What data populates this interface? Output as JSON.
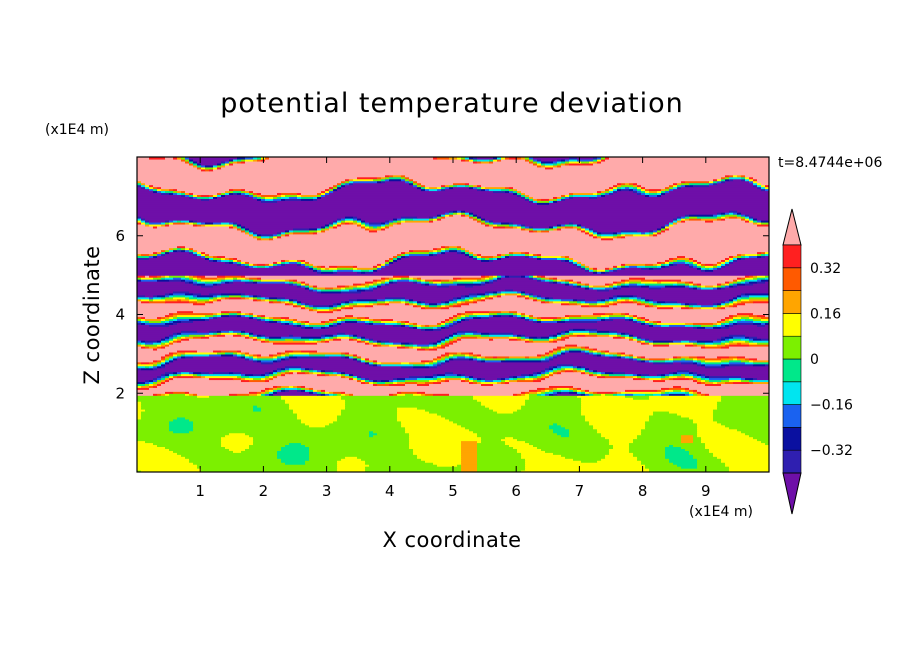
{
  "chart_data": {
    "type": "heatmap",
    "title": "potential temperature deviation",
    "xlabel": "X coordinate",
    "ylabel": "Z coordinate",
    "x_unit": "(x1E4 m)",
    "y_unit": "(x1E4 m)",
    "time_label": "t=8.4744e+06",
    "xlim": [
      0,
      10
    ],
    "ylim": [
      0,
      8
    ],
    "x_ticks": [
      {
        "value": 1,
        "label": "1"
      },
      {
        "value": 2,
        "label": "2"
      },
      {
        "value": 3,
        "label": "3"
      },
      {
        "value": 4,
        "label": "4"
      },
      {
        "value": 5,
        "label": "5"
      },
      {
        "value": 6,
        "label": "6"
      },
      {
        "value": 7,
        "label": "7"
      },
      {
        "value": 8,
        "label": "8"
      },
      {
        "value": 9,
        "label": "9"
      }
    ],
    "y_ticks": [
      {
        "value": 2,
        "label": "2"
      },
      {
        "value": 4,
        "label": "4"
      },
      {
        "value": 6,
        "label": "6"
      }
    ],
    "colorbar": {
      "levels": [
        -0.4,
        -0.32,
        -0.24,
        -0.16,
        -0.08,
        0,
        0.08,
        0.16,
        0.24,
        0.32,
        0.4
      ],
      "colors": [
        "#6e0fa8",
        "#2f1fb0",
        "#0a10a0",
        "#1a62f0",
        "#00e5f0",
        "#00e88a",
        "#7cf000",
        "#ffff00",
        "#ffa500",
        "#ff5a00",
        "#ff2020",
        "#ffaaaa"
      ],
      "labels": [
        {
          "value": 0.32,
          "label": "0.32"
        },
        {
          "value": 0.16,
          "label": "0.16"
        },
        {
          "value": 0,
          "label": "0"
        },
        {
          "value": -0.16,
          "label": "−0.16"
        },
        {
          "value": -0.32,
          "label": "−0.32"
        }
      ],
      "extend": "both"
    },
    "regions": [
      {
        "z_range": [
          0,
          2
        ],
        "description_value": "mostly 0 to 0.08 with patches of 0.08 to 0.16"
      },
      {
        "z_range": [
          2,
          5
        ],
        "description_value": "mixed -0.4 to 0.4 fine layers"
      },
      {
        "z_range": [
          5,
          8
        ],
        "description_value": "alternating bands below -0.4 and above 0.4"
      }
    ]
  }
}
